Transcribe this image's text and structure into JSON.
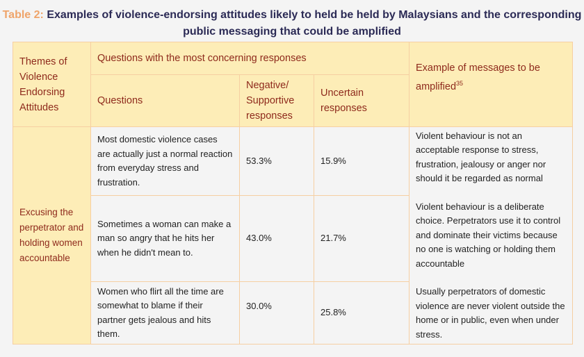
{
  "title": {
    "label": "Table 2:",
    "text": "Examples of violence-endorsing attitudes likely to held be held by Malaysians and the corresponding public messaging that could be amplified"
  },
  "header": {
    "themes": "Themes of Violence Endorsing Attitudes",
    "questions_group": "Questions with the most concerning responses",
    "questions": "Questions",
    "negative": "Negative/ Supportive responses",
    "uncertain": "Uncertain responses",
    "messages": "Example of messages to be amplified",
    "messages_sup": "35"
  },
  "theme": "Excusing the perpetrator and holding women accountable",
  "rows": [
    {
      "question": "Most domestic violence cases are actually just a normal reaction from everyday stress and frustration.",
      "negative": "53.3%",
      "uncertain": "15.9%",
      "message": "Violent behaviour is not an acceptable response to stress, frustration, jealousy or anger nor should it be regarded as normal"
    },
    {
      "question": "Sometimes a woman can make a man so angry that he hits her when he didn't mean to.",
      "negative": "43.0%",
      "uncertain": "21.7%",
      "message": "Violent behaviour is a deliberate choice. Perpetrators use it to control and dominate their victims because no one is watching or holding them accountable"
    },
    {
      "question": "Women who flirt all the time are somewhat to blame if their partner gets jealous and hits them.",
      "negative": "30.0%",
      "uncertain": "25.8%",
      "message": "Usually perpetrators of domestic violence are never violent outside the home or in public, even when under stress."
    }
  ]
}
